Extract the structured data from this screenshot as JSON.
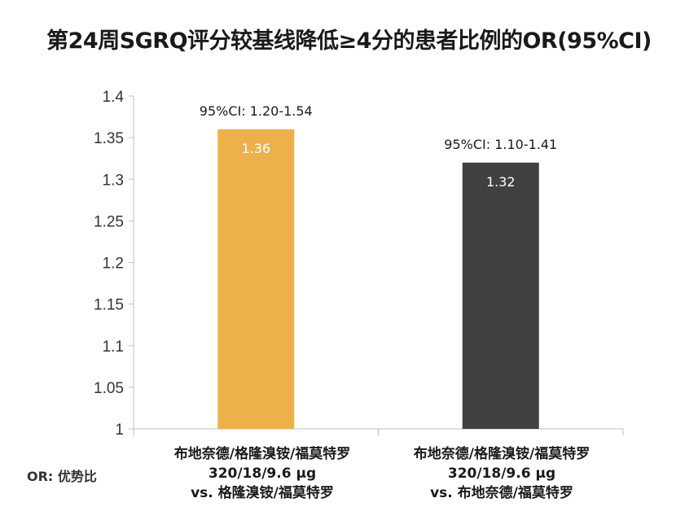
{
  "chart_data": {
    "type": "bar",
    "title": "第24周SGRQ评分较基线降低≥4分的患者比例的OR(95%CI)",
    "categories": [
      [
        "布地奈德/格隆溴铵/福莫特罗",
        "320/18/9.6 μg",
        "vs. 格隆溴铵/福莫特罗"
      ],
      [
        "布地奈德/格隆溴铵/福莫特罗",
        "320/18/9.6 μg",
        "vs. 布地奈德/福莫特罗"
      ]
    ],
    "values": [
      1.36,
      1.32
    ],
    "value_labels": [
      "1.36",
      "1.32"
    ],
    "ci_labels": [
      "95%CI: 1.20-1.54",
      "95%CI: 1.10-1.41"
    ],
    "colors": [
      "#EDB04B",
      "#404040"
    ],
    "ylim": [
      1,
      1.4
    ],
    "yticks": [
      1,
      1.05,
      1.1,
      1.15,
      1.2,
      1.25,
      1.3,
      1.35,
      1.4
    ],
    "ytick_labels": [
      "1",
      "1.05",
      "1.1",
      "1.15",
      "1.2",
      "1.25",
      "1.3",
      "1.35",
      "1.4"
    ],
    "xlabel": "",
    "ylabel": "",
    "grid": false
  },
  "footnote": "OR: 优势比"
}
